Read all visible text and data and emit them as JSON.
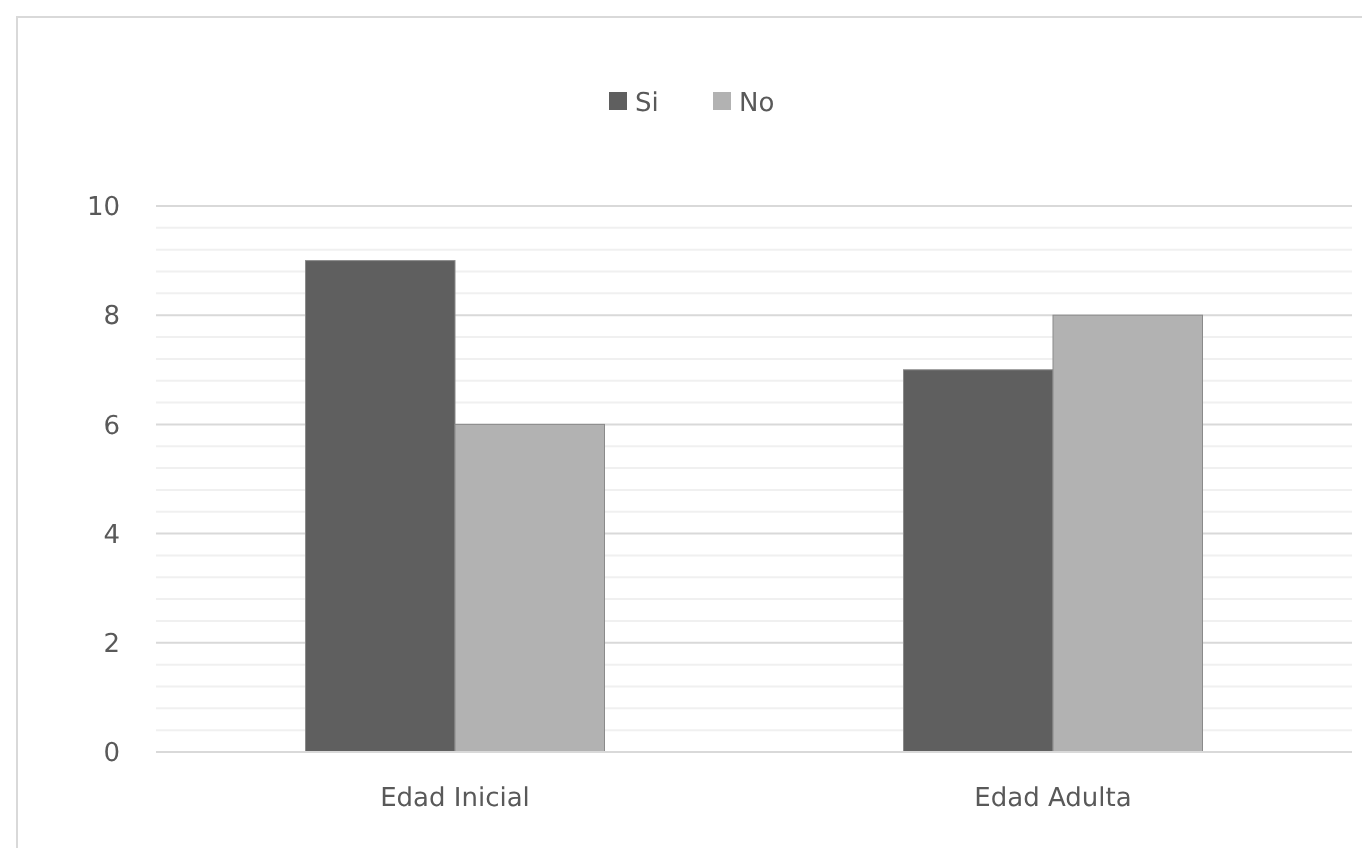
{
  "chart_data": {
    "type": "bar",
    "categories": [
      "Edad Inicial",
      "Edad Adulta"
    ],
    "series": [
      {
        "name": "Si",
        "color": "#5f5f5f",
        "values": [
          9,
          7
        ]
      },
      {
        "name": "No",
        "color": "#b2b2b2",
        "values": [
          6,
          8
        ]
      }
    ],
    "ylim": [
      0,
      10
    ],
    "yticks": [
      0,
      {
        "value": 0.4,
        "label": null
      },
      {
        "value": 0.8,
        "label": null
      },
      {
        "value": 1.2,
        "label": null
      },
      {
        "value": 1.6,
        "label": null
      },
      2,
      {
        "value": 2.4,
        "label": null
      },
      {
        "value": 2.8,
        "label": null
      },
      {
        "value": 3.2,
        "label": null
      },
      {
        "value": 3.6,
        "label": null
      },
      4,
      {
        "value": 4.4,
        "label": null
      },
      {
        "value": 4.8,
        "label": null
      },
      {
        "value": 5.2,
        "label": null
      },
      {
        "value": 5.6,
        "label": null
      },
      6,
      {
        "value": 6.4,
        "label": null
      },
      {
        "value": 6.8,
        "label": null
      },
      {
        "value": 7.2,
        "label": null
      },
      {
        "value": 7.6,
        "label": null
      },
      8,
      {
        "value": 8.4,
        "label": null
      },
      {
        "value": 8.8,
        "label": null
      },
      {
        "value": 9.2,
        "label": null
      },
      {
        "value": 9.6,
        "label": null
      },
      10
    ],
    "grid": true,
    "legend": "top"
  }
}
